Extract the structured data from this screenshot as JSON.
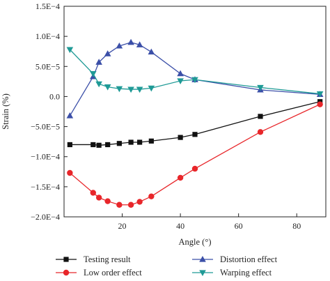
{
  "chart_data": {
    "type": "line",
    "xlabel": "Angle (°)",
    "ylabel": "Strain (%)",
    "xlim": [
      0,
      90
    ],
    "ylim": [
      -0.0002,
      0.00015
    ],
    "grid": false,
    "legend_placement": "bottom",
    "x_ticks": [
      {
        "value": 20,
        "label": "20"
      },
      {
        "value": 40,
        "label": "40"
      },
      {
        "value": 60,
        "label": "60"
      },
      {
        "value": 80,
        "label": "80"
      }
    ],
    "y_ticks": [
      {
        "value": 0.00015,
        "label": "1.5E−4"
      },
      {
        "value": 0.0001,
        "label": "1.0E−4"
      },
      {
        "value": 5e-05,
        "label": "5.0E−5"
      },
      {
        "value": 0,
        "label": "0.0"
      },
      {
        "value": -5e-05,
        "label": "−5.0E−5"
      },
      {
        "value": -0.0001,
        "label": "−1.0E−4"
      },
      {
        "value": -0.00015,
        "label": "−1.5E−4"
      },
      {
        "value": -0.0002,
        "label": "−2.0E−4"
      }
    ],
    "series": [
      {
        "name": "Testing result",
        "color": "#111111",
        "marker": "square",
        "x": [
          2,
          10,
          12,
          15,
          19,
          23,
          26,
          30,
          40,
          45,
          67.5,
          88
        ],
        "y": [
          -8e-05,
          -8e-05,
          -8.1e-05,
          -8e-05,
          -7.8e-05,
          -7.6e-05,
          -7.6e-05,
          -7.4e-05,
          -6.8e-05,
          -6.3e-05,
          -3.3e-05,
          -8.5e-06
        ]
      },
      {
        "name": "Low order effect",
        "color": "#e8262a",
        "marker": "circle",
        "x": [
          2,
          10,
          12,
          15,
          19,
          23,
          26,
          30,
          40,
          45,
          67.5,
          88
        ],
        "y": [
          -0.000127,
          -0.00016,
          -0.000168,
          -0.000174,
          -0.00018,
          -0.00018,
          -0.000175,
          -0.000166,
          -0.000135,
          -0.00012,
          -5.9e-05,
          -1.3e-05
        ]
      },
      {
        "name": "Distortion effect",
        "color": "#3b4fa8",
        "marker": "triangle-up",
        "x": [
          2,
          10,
          12,
          15,
          19,
          23,
          26,
          30,
          40,
          45,
          67.5,
          88
        ],
        "y": [
          -3.2e-05,
          3.3e-05,
          5.7e-05,
          7.1e-05,
          8.4e-05,
          9e-05,
          8.6e-05,
          7.4e-05,
          3.8e-05,
          2.8e-05,
          1.1e-05,
          3.5e-06
        ]
      },
      {
        "name": "Warping effect",
        "color": "#1f9a96",
        "marker": "triangle-down",
        "x": [
          2,
          10,
          12,
          15,
          19,
          23,
          26,
          30,
          40,
          45,
          67.5,
          88
        ],
        "y": [
          7.8e-05,
          3.8e-05,
          2.1e-05,
          1.6e-05,
          1.3e-05,
          1.2e-05,
          1.2e-05,
          1.4e-05,
          2.6e-05,
          2.8e-05,
          1.5e-05,
          4.5e-06
        ]
      }
    ]
  }
}
